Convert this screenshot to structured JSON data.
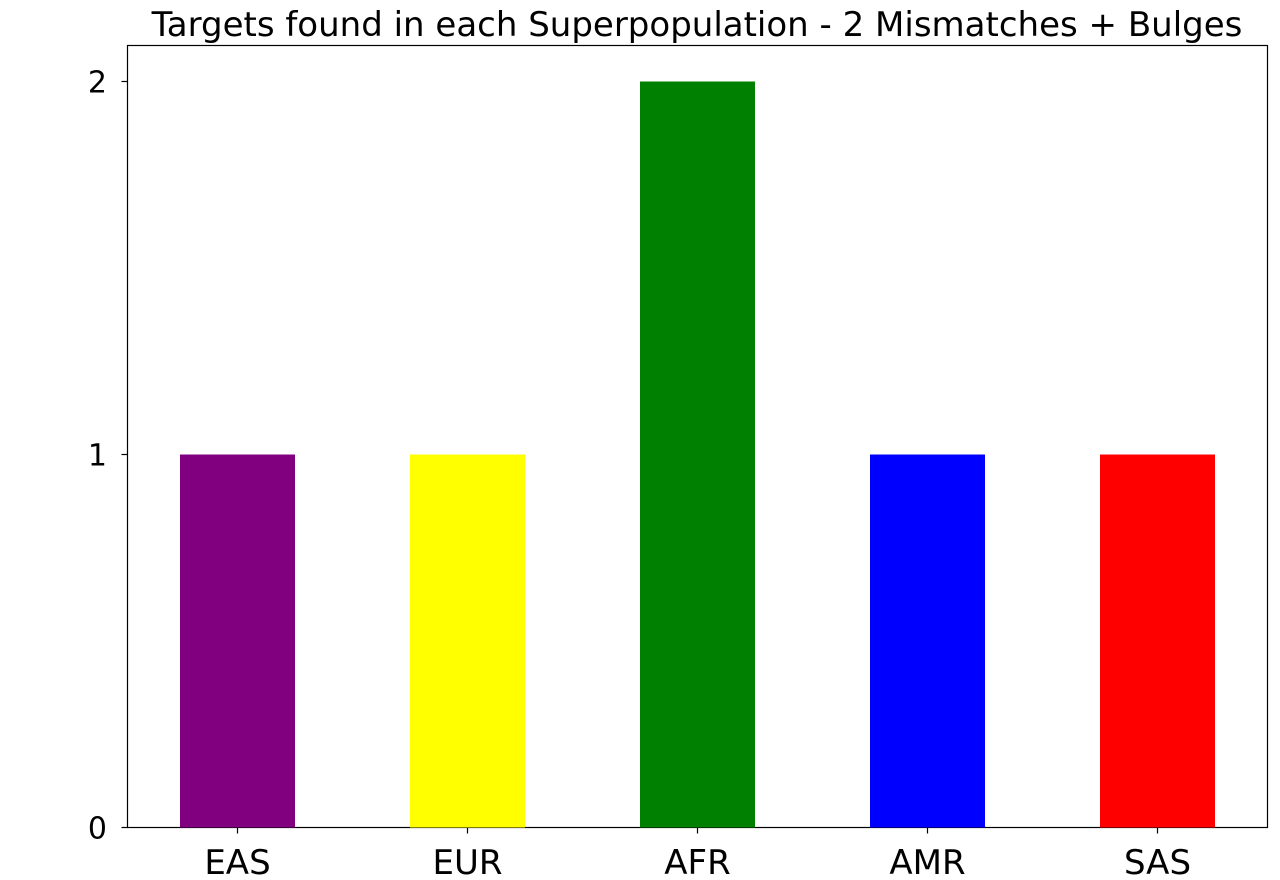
{
  "chart_data": {
    "type": "bar",
    "title": "Targets found in each Superpopulation - 2 Mismatches + Bulges",
    "xlabel": "",
    "ylabel": "",
    "categories": [
      "EAS",
      "EUR",
      "AFR",
      "AMR",
      "SAS"
    ],
    "values": [
      1,
      1,
      2,
      1,
      1
    ],
    "colors": [
      "#800080",
      "#ffff00",
      "#008000",
      "#0000ff",
      "#ff0000"
    ],
    "yticks": [
      0,
      1,
      2
    ],
    "ylim": [
      0,
      2.1
    ],
    "grid": false,
    "legend": "none"
  }
}
